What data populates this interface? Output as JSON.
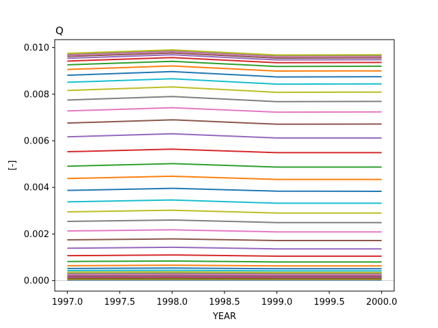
{
  "chart_data": {
    "type": "line",
    "title": "Q",
    "xlabel": "YEAR",
    "ylabel": "[-]",
    "xlim": [
      1996.88,
      2000.12
    ],
    "ylim": [
      -0.00045,
      0.01034
    ],
    "xticks": [
      1997.0,
      1997.5,
      1998.0,
      1998.5,
      1999.0,
      1999.5,
      2000.0
    ],
    "xtick_labels": [
      "1997.0",
      "1997.5",
      "1998.0",
      "1998.5",
      "1999.0",
      "1999.5",
      "2000.0"
    ],
    "yticks": [
      0.0,
      0.002,
      0.004,
      0.006,
      0.008,
      0.01
    ],
    "ytick_labels": [
      "0.000",
      "0.002",
      "0.004",
      "0.006",
      "0.008",
      "0.010"
    ],
    "grid": false,
    "legend": "none",
    "reference_line": {
      "y": 0.0,
      "color": "#cccccc"
    },
    "x": [
      1997,
      1998,
      1999,
      2000
    ],
    "palette": [
      "#1f77b4",
      "#ff7f0e",
      "#2ca02c",
      "#d62728",
      "#9467bd",
      "#8c564b",
      "#e377c2",
      "#7f7f7f",
      "#bcbd22",
      "#17becf"
    ],
    "series": [
      {
        "values": [
          3e-05,
          3e-05,
          3e-05,
          3e-05
        ]
      },
      {
        "values": [
          6e-05,
          6e-05,
          6e-05,
          6e-05
        ]
      },
      {
        "values": [
          9e-05,
          9e-05,
          9e-05,
          9e-05
        ]
      },
      {
        "values": [
          0.00012,
          0.00013,
          0.00012,
          0.00012
        ]
      },
      {
        "values": [
          0.00016,
          0.00017,
          0.00016,
          0.00016
        ]
      },
      {
        "values": [
          0.0002,
          0.00021,
          0.0002,
          0.0002
        ]
      },
      {
        "values": [
          0.00025,
          0.00026,
          0.00025,
          0.00025
        ]
      },
      {
        "values": [
          0.0003,
          0.00031,
          0.0003,
          0.0003
        ]
      },
      {
        "values": [
          0.00036,
          0.00037,
          0.00035,
          0.00035
        ]
      },
      {
        "values": [
          0.00043,
          0.00044,
          0.00042,
          0.00042
        ]
      },
      {
        "values": [
          0.00052,
          0.00054,
          0.00051,
          0.00051
        ]
      },
      {
        "values": [
          0.00064,
          0.00066,
          0.00063,
          0.00063
        ]
      },
      {
        "values": [
          0.00082,
          0.00084,
          0.0008,
          0.0008
        ]
      },
      {
        "values": [
          0.00107,
          0.0011,
          0.00105,
          0.00105
        ]
      },
      {
        "values": [
          0.00139,
          0.00143,
          0.00136,
          0.00136
        ]
      },
      {
        "values": [
          0.00175,
          0.00179,
          0.00172,
          0.00172
        ]
      },
      {
        "values": [
          0.00213,
          0.00218,
          0.00209,
          0.00209
        ]
      },
      {
        "values": [
          0.00254,
          0.0026,
          0.00249,
          0.00249
        ]
      },
      {
        "values": [
          0.00295,
          0.00302,
          0.0029,
          0.0029
        ]
      },
      {
        "values": [
          0.00338,
          0.00346,
          0.00332,
          0.00332
        ]
      },
      {
        "values": [
          0.00387,
          0.00396,
          0.00384,
          0.00383
        ]
      },
      {
        "values": [
          0.00438,
          0.00448,
          0.00434,
          0.00434
        ]
      },
      {
        "values": [
          0.00491,
          0.00502,
          0.00487,
          0.00487
        ]
      },
      {
        "values": [
          0.00553,
          0.00564,
          0.00549,
          0.00549
        ]
      },
      {
        "values": [
          0.00617,
          0.0063,
          0.00612,
          0.00612
        ]
      },
      {
        "values": [
          0.00676,
          0.0069,
          0.00671,
          0.00672
        ]
      },
      {
        "values": [
          0.00728,
          0.00742,
          0.00723,
          0.00724
        ]
      },
      {
        "values": [
          0.00775,
          0.0079,
          0.00768,
          0.00769
        ]
      },
      {
        "values": [
          0.00816,
          0.00831,
          0.00808,
          0.00809
        ]
      },
      {
        "values": [
          0.00851,
          0.00866,
          0.00843,
          0.00844
        ]
      },
      {
        "values": [
          0.00881,
          0.00897,
          0.00874,
          0.00875
        ]
      },
      {
        "values": [
          0.00906,
          0.00921,
          0.00899,
          0.009
        ]
      },
      {
        "values": [
          0.00926,
          0.00941,
          0.00919,
          0.0092
        ]
      },
      {
        "values": [
          0.00942,
          0.00957,
          0.00935,
          0.00936
        ]
      },
      {
        "values": [
          0.00954,
          0.00969,
          0.00947,
          0.00948
        ]
      },
      {
        "values": [
          0.00962,
          0.00977,
          0.00955,
          0.00956
        ]
      },
      {
        "values": [
          0.00968,
          0.00983,
          0.00961,
          0.00962
        ]
      },
      {
        "values": [
          0.00972,
          0.00987,
          0.00965,
          0.00966
        ]
      },
      {
        "values": [
          0.00975,
          0.0099,
          0.00968,
          0.00969
        ]
      }
    ]
  }
}
